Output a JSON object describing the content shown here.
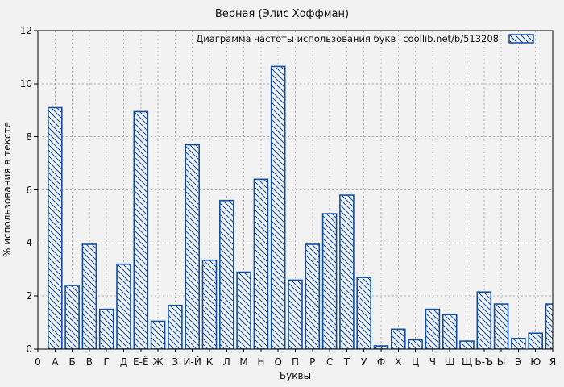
{
  "colors": {
    "background": "#f2f2f2",
    "bar_edge": "#0f4fa5",
    "bar_fill": "#f2f2f2",
    "grid": "#b0b0b0",
    "axis": "#000000"
  },
  "chart_data": {
    "type": "bar",
    "title": "Верная (Элис Хоффман)",
    "legend": {
      "label": "Диаграмма частоты использования букв",
      "source": "coollib.net/b/513208"
    },
    "legend_position": "top-right",
    "xlabel": "Буквы",
    "ylabel": "% использования в тексте",
    "origin_label": "0",
    "categories": [
      "А",
      "Б",
      "В",
      "Г",
      "Д",
      "Е-Ё",
      "Ж",
      "З",
      "И-Й",
      "К",
      "Л",
      "М",
      "Н",
      "О",
      "П",
      "Р",
      "С",
      "Т",
      "У",
      "Ф",
      "Х",
      "Ц",
      "Ч",
      "Ш",
      "Щ",
      "Ь-Ъ",
      "Ы",
      "Э",
      "Ю",
      "Я"
    ],
    "values": [
      9.1,
      2.4,
      3.95,
      1.5,
      3.2,
      8.95,
      1.05,
      1.65,
      7.7,
      3.35,
      5.6,
      2.9,
      6.4,
      10.65,
      2.6,
      3.95,
      5.1,
      5.8,
      2.7,
      0.12,
      0.75,
      0.35,
      1.5,
      1.3,
      0.3,
      2.15,
      1.7,
      0.4,
      0.6,
      1.7
    ],
    "ylim": [
      0,
      12
    ],
    "yticks": [
      0,
      2,
      4,
      6,
      8,
      10,
      12
    ],
    "grid": true,
    "hatch": "diagonal"
  }
}
